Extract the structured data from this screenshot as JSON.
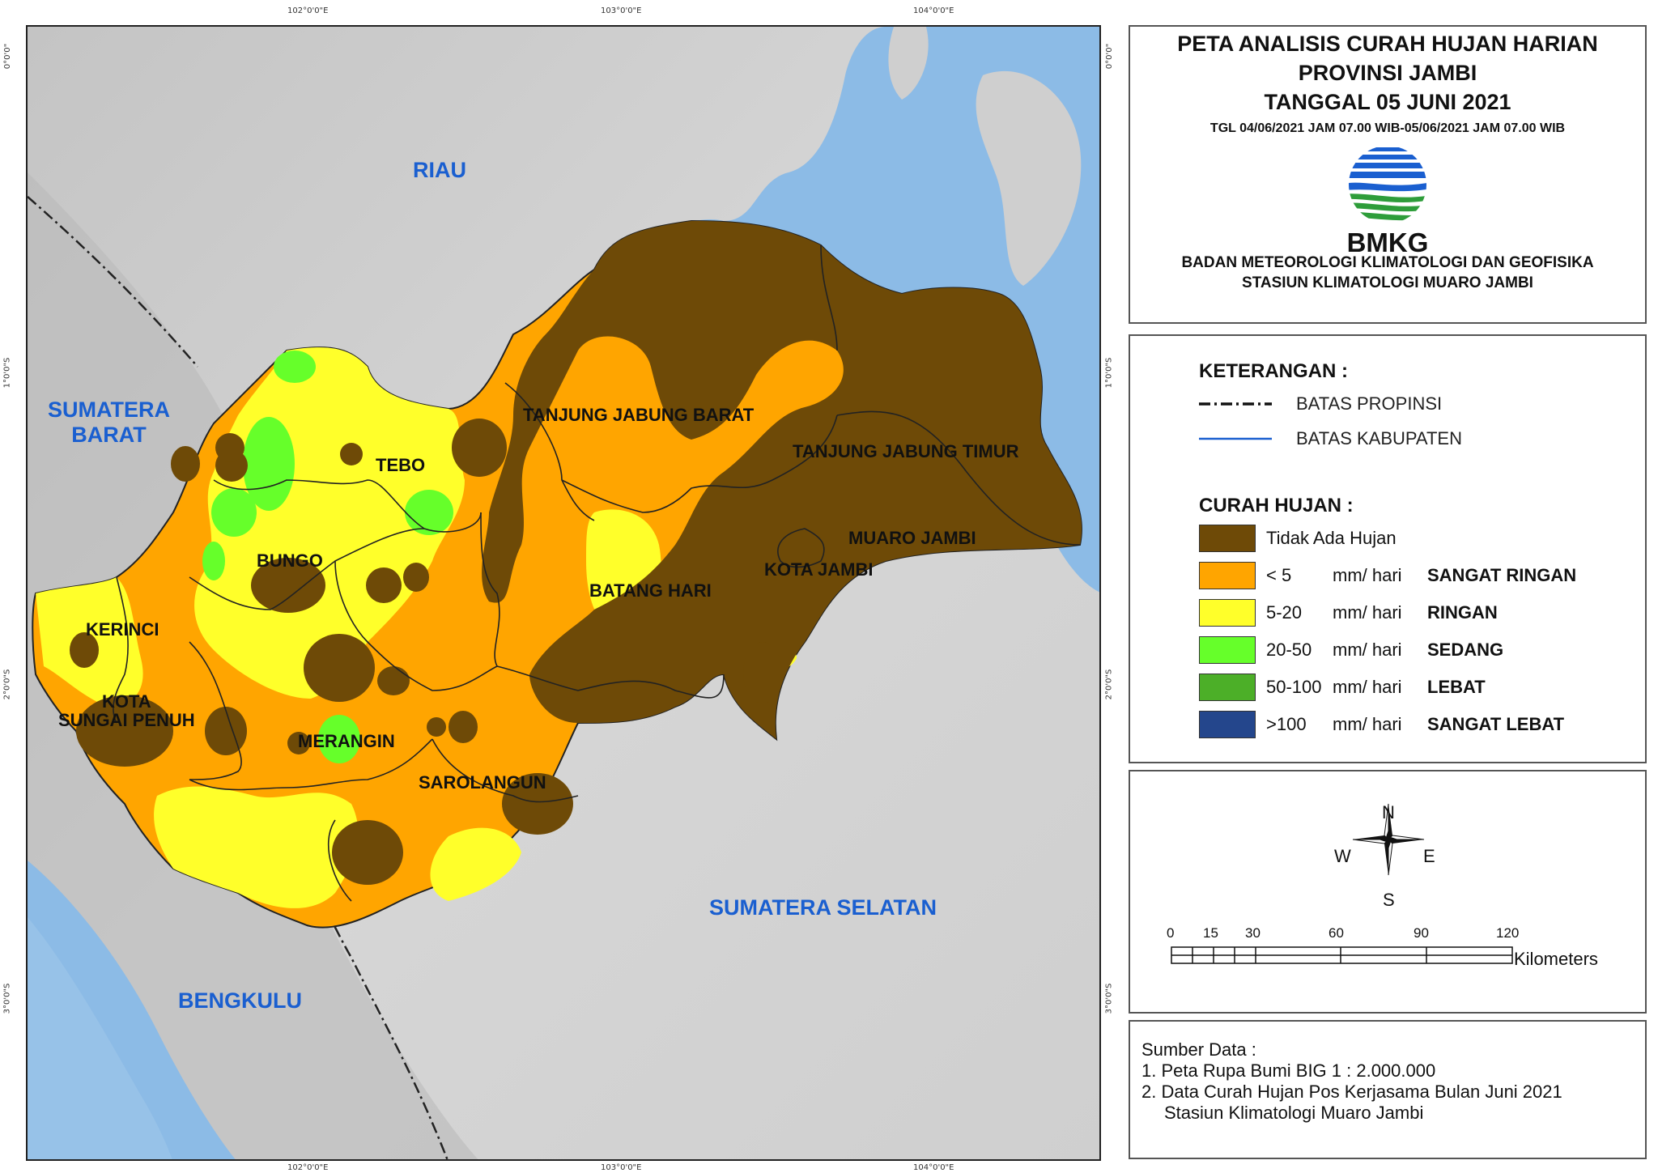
{
  "map": {
    "regions": {
      "riau": "RIAU",
      "sumbar": "SUMATERA\nBARAT",
      "sumsel": "SUMATERA SELATAN",
      "bengkulu": "BENGKULU"
    },
    "kabupaten": {
      "tebo": "TEBO",
      "bungo": "BUNGO",
      "kerinci": "KERINCI",
      "sungai_penuh": "KOTA\nSUNGAI PENUH",
      "merangin": "MERANGIN",
      "sarolangun": "SAROLANGUN",
      "batang_hari": "BATANG HARI",
      "tjb_barat": "TANJUNG JABUNG BARAT",
      "tjb_timur": "TANJUNG JABUNG TIMUR",
      "muaro_jambi": "MUARO JAMBI",
      "kota_jambi": "KOTA JAMBI"
    },
    "coords": {
      "top": [
        "102°0'0\"E",
        "103°0'0\"E",
        "104°0'0\"E"
      ],
      "bottom": [
        "102°0'0\"E",
        "103°0'0\"E",
        "104°0'0\"E"
      ],
      "left": [
        "0°0'0\"",
        "1°0'0\"S",
        "2°0'0\"S",
        "3°0'0\"S"
      ],
      "right": [
        "0°0'0\"",
        "1°0'0\"S",
        "2°0'0\"S",
        "3°0'0\"S"
      ]
    }
  },
  "title": {
    "line1": "PETA ANALISIS CURAH HUJAN HARIAN",
    "line2": "PROVINSI JAMBI",
    "line3": "TANGGAL 05 JUNI 2021",
    "period": "TGL 04/06/2021 JAM 07.00 WIB-05/06/2021 JAM 07.00 WIB",
    "logo_text": "BMKG",
    "org1": "BADAN METEOROLOGI KLIMATOLOGI DAN GEOFISIKA",
    "org2": "STASIUN KLIMATOLOGI MUARO JAMBI"
  },
  "legend": {
    "heading": "KETERANGAN :",
    "batas_propinsi": "BATAS PROPINSI",
    "batas_kabupaten": "BATAS KABUPATEN",
    "curah_heading": "CURAH HUJAN :",
    "classes": [
      {
        "value": "Tidak Ada Hujan",
        "unit": "",
        "category": "",
        "color": "#6e4a07"
      },
      {
        "value": "< 5",
        "unit": "mm/ hari",
        "category": "SANGAT RINGAN",
        "color": "#ffa500"
      },
      {
        "value": "5-20",
        "unit": "mm/ hari",
        "category": "RINGAN",
        "color": "#ffff2a"
      },
      {
        "value": "20-50",
        "unit": "mm/ hari",
        "category": "SEDANG",
        "color": "#66ff2a"
      },
      {
        "value": "50-100",
        "unit": "mm/ hari",
        "category": "LEBAT",
        "color": "#4caf28"
      },
      {
        "value": ">100",
        "unit": "mm/ hari",
        "category": "SANGAT LEBAT",
        "color": "#24468c"
      }
    ]
  },
  "compass": {
    "n": "N",
    "s": "S",
    "e": "E",
    "w": "W"
  },
  "scale": {
    "ticks": [
      "0",
      "15",
      "30",
      "60",
      "90",
      "120"
    ],
    "unit": "Kilometers"
  },
  "source": {
    "heading": "Sumber Data :",
    "item1": "1. Peta Rupa Bumi BIG 1 : 2.000.000",
    "item2": "2. Data Curah Hujan Pos Kerjasama Bulan Juni 2021",
    "item2b": "Stasiun Klimatologi Muaro Jambi"
  }
}
